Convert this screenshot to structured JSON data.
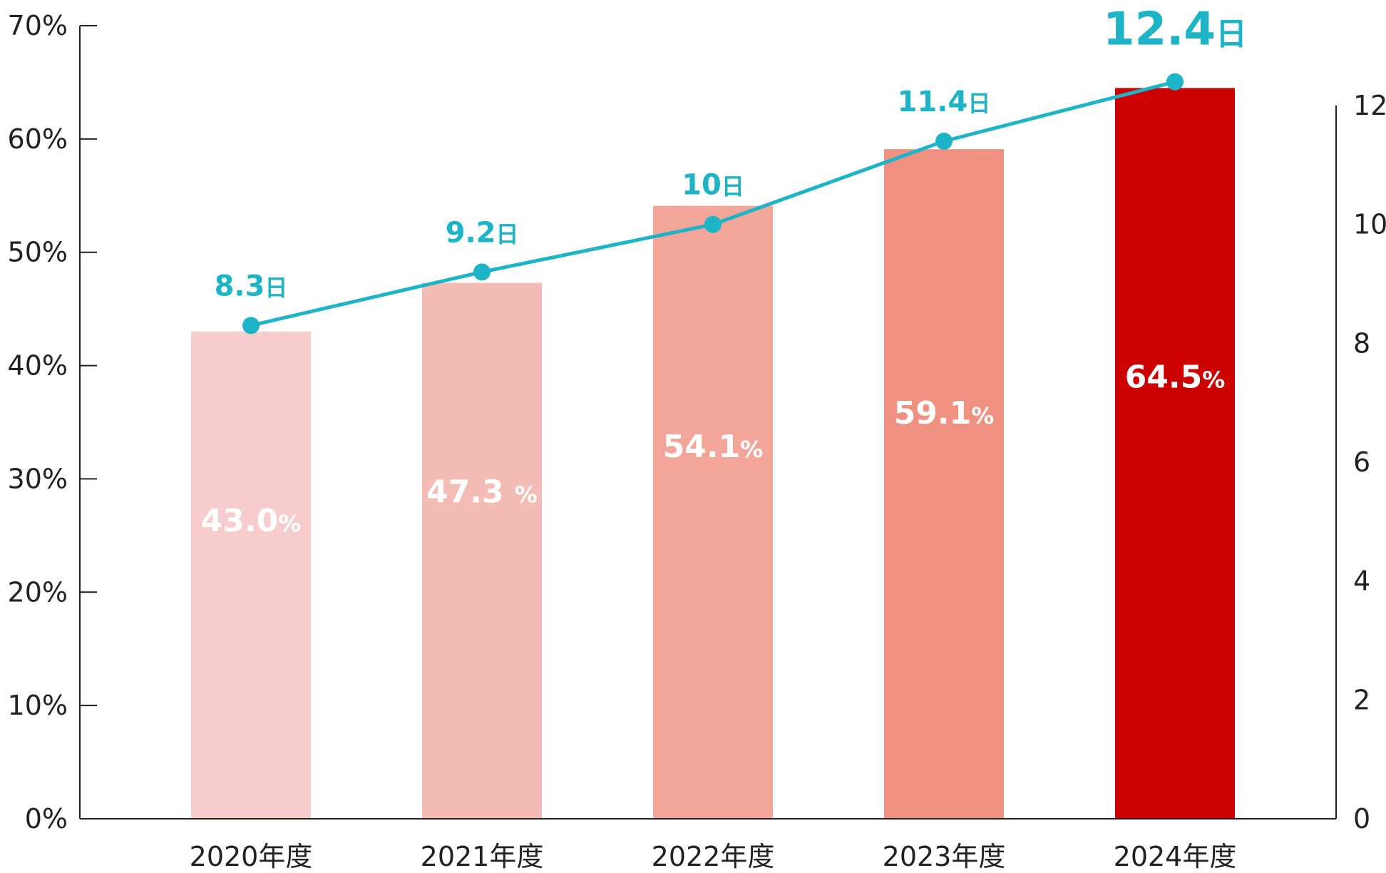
{
  "chart_data": {
    "type": "bar+line",
    "categories": [
      "2020年度",
      "2021年度",
      "2022年度",
      "2023年度",
      "2024年度"
    ],
    "bar_series": {
      "values": [
        43.0,
        47.3,
        54.1,
        59.1,
        64.5
      ],
      "labels": [
        "43.0",
        "47.3 ",
        "54.1",
        "59.1",
        "64.5"
      ],
      "unit": "%",
      "colors": [
        "#f7cccc",
        "#f5bcb5",
        "#f2a598",
        "#ef9080",
        "#cc0000"
      ]
    },
    "line_series": {
      "values": [
        8.3,
        9.2,
        10,
        11.4,
        12.4
      ],
      "labels": [
        "8.3",
        "9.2",
        "10",
        "11.4",
        "12.4"
      ],
      "unit": "日",
      "color": "#1eb4c8"
    },
    "left_axis": {
      "min": 0,
      "max": 70,
      "ticks": [
        "0%",
        "10%",
        "20%",
        "30%",
        "40%",
        "50%",
        "60%",
        "70%"
      ]
    },
    "right_axis": {
      "min": 0,
      "max": 12,
      "ticks": [
        "0",
        "2",
        "4",
        "6",
        "8",
        "10",
        "12"
      ]
    },
    "legend": "none",
    "grid": false
  }
}
